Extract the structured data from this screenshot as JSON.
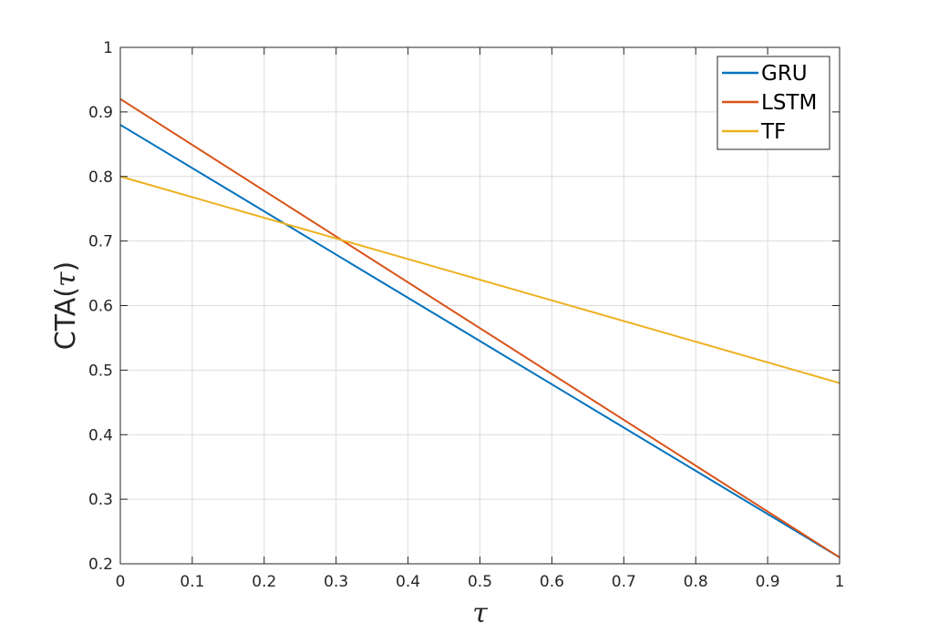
{
  "chart_data": {
    "type": "line",
    "title": "",
    "xlabel": "τ",
    "ylabel_prefix": "CTA(",
    "ylabel_var": "τ",
    "ylabel_suffix": ")",
    "xlim": [
      0,
      1
    ],
    "ylim": [
      0.2,
      1
    ],
    "grid": true,
    "legend_placement": "top-right",
    "x_ticks": [
      0,
      0.1,
      0.2,
      0.3,
      0.4,
      0.5,
      0.6,
      0.7,
      0.8,
      0.9,
      1
    ],
    "x_tick_labels": [
      "0",
      "0.1",
      "0.2",
      "0.3",
      "0.4",
      "0.5",
      "0.6",
      "0.7",
      "0.8",
      "0.9",
      "1"
    ],
    "y_ticks": [
      0.2,
      0.3,
      0.4,
      0.5,
      0.6,
      0.7,
      0.8,
      0.9,
      1
    ],
    "y_tick_labels": [
      "0.2",
      "0.3",
      "0.4",
      "0.5",
      "0.6",
      "0.7",
      "0.8",
      "0.9",
      "1"
    ],
    "series": [
      {
        "name": "GRU",
        "color": "#0072BD",
        "x": [
          0,
          1
        ],
        "y": [
          0.88,
          0.21
        ]
      },
      {
        "name": "LSTM",
        "color": "#D95319",
        "x": [
          0,
          1
        ],
        "y": [
          0.92,
          0.21
        ]
      },
      {
        "name": "TF",
        "color": "#EDB120",
        "x": [
          0,
          1
        ],
        "y": [
          0.8,
          0.48
        ]
      }
    ]
  }
}
